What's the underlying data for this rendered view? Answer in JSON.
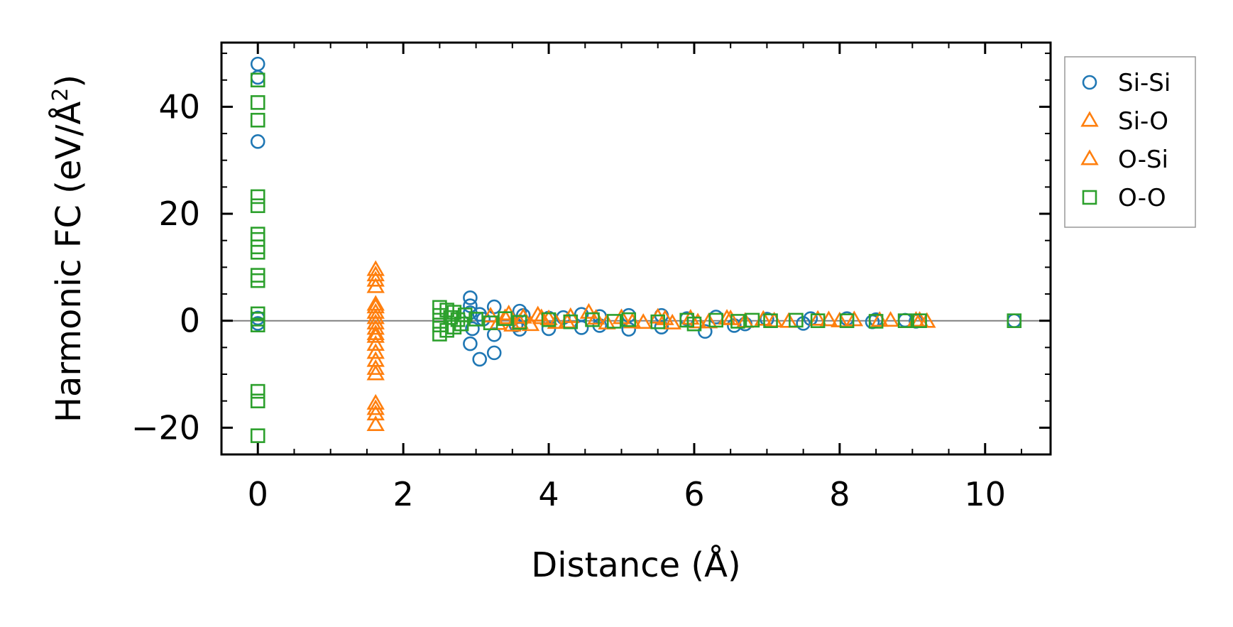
{
  "chart_data": {
    "type": "scatter",
    "xlabel": "Distance (Å)",
    "ylabel_main": "Harmonic FC (eV/Å",
    "ylabel_sup": "2",
    "ylabel_close": ")",
    "xlim": [
      -0.5,
      10.9
    ],
    "ylim": [
      -25,
      52
    ],
    "xticks": [
      0,
      2,
      4,
      6,
      8,
      10
    ],
    "xtick_labels": [
      "0",
      "2",
      "4",
      "6",
      "8",
      "10"
    ],
    "yticks": [
      -20,
      0,
      20,
      40
    ],
    "ytick_labels": [
      "−20",
      "0",
      "20",
      "40"
    ],
    "grid": false,
    "zero_line": true,
    "legend_position": "outside-right-top",
    "series": [
      {
        "name": "Si-Si",
        "marker": "circle",
        "color": "#1f77b4",
        "points": [
          [
            0,
            48
          ],
          [
            0,
            45.5
          ],
          [
            0,
            33.5
          ],
          [
            0,
            0.5
          ],
          [
            0,
            -0.5
          ],
          [
            2.92,
            4.3
          ],
          [
            2.92,
            2.8
          ],
          [
            2.92,
            1.5
          ],
          [
            2.95,
            -1.5
          ],
          [
            2.92,
            -4.3
          ],
          [
            3.05,
            -7.2
          ],
          [
            3.05,
            1.2
          ],
          [
            3.25,
            2.6
          ],
          [
            3.25,
            -2.6
          ],
          [
            3.25,
            -6.0
          ],
          [
            3.1,
            0.3
          ],
          [
            3.6,
            1.8
          ],
          [
            3.6,
            -1.6
          ],
          [
            3.65,
            1.0
          ],
          [
            3.55,
            -0.8
          ],
          [
            4.0,
            -1.5
          ],
          [
            4.0,
            0.5
          ],
          [
            4.2,
            0.6
          ],
          [
            4.45,
            -1.3
          ],
          [
            4.45,
            1.2
          ],
          [
            4.7,
            -0.9
          ],
          [
            4.7,
            0.8
          ],
          [
            5.1,
            -1.6
          ],
          [
            5.1,
            1.0
          ],
          [
            5.55,
            -1.2
          ],
          [
            5.55,
            1.0
          ],
          [
            5.9,
            0.4
          ],
          [
            6.15,
            -2.0
          ],
          [
            6.3,
            0.7
          ],
          [
            6.55,
            -0.9
          ],
          [
            6.7,
            -0.6
          ],
          [
            7.0,
            0.3
          ],
          [
            7.5,
            -0.5
          ],
          [
            7.6,
            0.4
          ],
          [
            8.1,
            0.4
          ],
          [
            8.45,
            -0.2
          ],
          [
            8.5,
            0.2
          ],
          [
            8.9,
            0.1
          ],
          [
            9.05,
            -0.1
          ],
          [
            10.4,
            0.0
          ]
        ]
      },
      {
        "name": "Si-O",
        "marker": "triangle",
        "color": "#ff7f0e",
        "points": [
          [
            1.62,
            9.5
          ],
          [
            1.62,
            7.5
          ],
          [
            1.62,
            6.3
          ],
          [
            1.62,
            2.5
          ],
          [
            1.62,
            1.5
          ],
          [
            1.62,
            0.5
          ],
          [
            1.62,
            -0.5
          ],
          [
            1.62,
            -1.5
          ],
          [
            1.62,
            -3.0
          ],
          [
            1.62,
            -4.5
          ],
          [
            1.62,
            -6.0
          ],
          [
            1.62,
            -7.5
          ],
          [
            1.62,
            -9.0
          ],
          [
            1.62,
            -15.5
          ],
          [
            1.62,
            -17.5
          ],
          [
            1.62,
            -19.5
          ],
          [
            3.2,
            0.8
          ],
          [
            3.3,
            -0.6
          ],
          [
            3.45,
            1.2
          ],
          [
            3.5,
            -0.9
          ],
          [
            3.65,
            0.6
          ],
          [
            3.75,
            -0.8
          ],
          [
            3.85,
            1.0
          ],
          [
            4.0,
            0.3
          ],
          [
            4.1,
            -0.4
          ],
          [
            4.3,
            0.7
          ],
          [
            4.55,
            1.5
          ],
          [
            4.8,
            -0.5
          ],
          [
            5.0,
            0.5
          ],
          [
            5.3,
            -0.4
          ],
          [
            5.5,
            0.6
          ],
          [
            5.7,
            -0.5
          ],
          [
            5.95,
            0.4
          ],
          [
            6.2,
            -0.3
          ],
          [
            6.45,
            0.4
          ],
          [
            6.7,
            -0.2
          ],
          [
            6.95,
            0.2
          ],
          [
            7.3,
            -0.2
          ],
          [
            7.7,
            0.2
          ],
          [
            8.0,
            -0.1
          ],
          [
            8.2,
            0.1
          ],
          [
            8.55,
            0.0
          ],
          [
            9.1,
            0.0
          ],
          [
            9.2,
            -0.2
          ]
        ]
      },
      {
        "name": "O-Si",
        "marker": "triangle",
        "color": "#ff7f0e",
        "points": [
          [
            1.62,
            8.5
          ],
          [
            1.62,
            3.0
          ],
          [
            1.62,
            -2.5
          ],
          [
            1.62,
            -10.0
          ],
          [
            1.62,
            -16.5
          ],
          [
            3.4,
            0.5
          ],
          [
            3.6,
            -0.4
          ],
          [
            3.9,
            0.5
          ],
          [
            4.25,
            -0.3
          ],
          [
            4.65,
            0.4
          ],
          [
            5.15,
            -0.3
          ],
          [
            5.6,
            0.3
          ],
          [
            6.05,
            -0.3
          ],
          [
            6.5,
            0.3
          ],
          [
            7.1,
            -0.1
          ],
          [
            7.85,
            0.1
          ],
          [
            8.7,
            0.0
          ],
          [
            9.05,
            0.0
          ]
        ]
      },
      {
        "name": "O-O",
        "marker": "square",
        "color": "#2ca02c",
        "points": [
          [
            0,
            45
          ],
          [
            0,
            40.8
          ],
          [
            0,
            37.5
          ],
          [
            0,
            23.2
          ],
          [
            0,
            21.5
          ],
          [
            0,
            16.2
          ],
          [
            0,
            15.2
          ],
          [
            0,
            13.8
          ],
          [
            0,
            12.8
          ],
          [
            0,
            8.5
          ],
          [
            0,
            7.5
          ],
          [
            0,
            1.3
          ],
          [
            0,
            0.3
          ],
          [
            0,
            -0.8
          ],
          [
            0,
            -13.2
          ],
          [
            0,
            -15.0
          ],
          [
            0,
            -21.5
          ],
          [
            2.5,
            2.5
          ],
          [
            2.5,
            1.0
          ],
          [
            2.5,
            -0.8
          ],
          [
            2.5,
            -2.5
          ],
          [
            2.6,
            2.0
          ],
          [
            2.6,
            -1.8
          ],
          [
            2.65,
            0.6
          ],
          [
            2.7,
            1.6
          ],
          [
            2.7,
            -1.2
          ],
          [
            2.75,
            0.2
          ],
          [
            2.8,
            -0.6
          ],
          [
            2.85,
            1.1
          ],
          [
            3.0,
            0.3
          ],
          [
            3.2,
            -0.4
          ],
          [
            3.4,
            0.4
          ],
          [
            3.6,
            -0.3
          ],
          [
            4.0,
            0.2
          ],
          [
            4.3,
            -0.2
          ],
          [
            4.6,
            0.2
          ],
          [
            4.9,
            -0.1
          ],
          [
            5.1,
            0.2
          ],
          [
            5.5,
            -0.2
          ],
          [
            5.9,
            0.1
          ],
          [
            6.0,
            -0.6
          ],
          [
            6.3,
            0.1
          ],
          [
            6.6,
            -0.1
          ],
          [
            6.8,
            0.1
          ],
          [
            7.05,
            0.0
          ],
          [
            7.4,
            0.1
          ],
          [
            7.7,
            0.0
          ],
          [
            8.1,
            0.0
          ],
          [
            8.5,
            -0.1
          ],
          [
            8.9,
            0.0
          ],
          [
            9.1,
            0.0
          ],
          [
            10.4,
            0.0
          ]
        ]
      }
    ]
  }
}
